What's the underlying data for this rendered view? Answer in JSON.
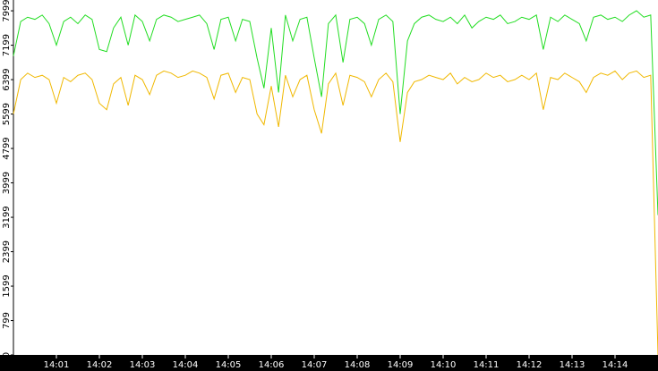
{
  "chart_data": {
    "type": "line",
    "x": [
      840,
      840.17,
      840.33,
      840.5,
      840.67,
      840.83,
      841,
      841.17,
      841.33,
      841.5,
      841.67,
      841.83,
      842,
      842.17,
      842.33,
      842.5,
      842.67,
      842.83,
      843,
      843.17,
      843.33,
      843.5,
      843.67,
      843.83,
      844,
      844.17,
      844.33,
      844.5,
      844.67,
      844.83,
      845,
      845.17,
      845.33,
      845.5,
      845.67,
      845.83,
      846,
      846.17,
      846.33,
      846.5,
      846.67,
      846.83,
      847,
      847.17,
      847.33,
      847.5,
      847.67,
      847.83,
      848,
      848.17,
      848.33,
      848.5,
      848.67,
      848.83,
      849,
      849.17,
      849.33,
      849.5,
      849.67,
      849.83,
      850,
      850.17,
      850.33,
      850.5,
      850.67,
      850.83,
      851,
      851.17,
      851.33,
      851.5,
      851.67,
      851.83,
      852,
      852.17,
      852.33,
      852.5,
      852.67,
      852.83,
      853,
      853.17,
      853.33,
      853.5,
      853.67,
      853.83,
      854,
      854.17,
      854.33,
      854.5,
      854.67,
      854.83,
      855
    ],
    "series": [
      {
        "color": "#22dd22",
        "values": [
          6950,
          7750,
          7850,
          7800,
          7900,
          7700,
          7200,
          7750,
          7850,
          7700,
          7900,
          7800,
          7100,
          7050,
          7600,
          7850,
          7200,
          7900,
          7750,
          7300,
          7800,
          7900,
          7850,
          7750,
          7800,
          7850,
          7900,
          7700,
          7100,
          7800,
          7850,
          7300,
          7800,
          7750,
          6900,
          6200,
          7600,
          6100,
          7900,
          7300,
          7800,
          7850,
          6900,
          6000,
          7700,
          7900,
          6800,
          7800,
          7850,
          7700,
          7200,
          7800,
          7900,
          7750,
          5600,
          7300,
          7700,
          7850,
          7900,
          7800,
          7750,
          7850,
          7700,
          7900,
          7600,
          7750,
          7850,
          7800,
          7900,
          7700,
          7750,
          7850,
          7800,
          7900,
          7100,
          7850,
          7750,
          7900,
          7800,
          7700,
          7300,
          7850,
          7900,
          7800,
          7850,
          7750,
          7900,
          8000,
          7850,
          7900,
          3250
        ]
      },
      {
        "color": "#f0b800",
        "values": [
          5600,
          6400,
          6550,
          6450,
          6500,
          6400,
          5850,
          6450,
          6350,
          6500,
          6550,
          6400,
          5850,
          5700,
          6300,
          6450,
          5800,
          6500,
          6400,
          6050,
          6500,
          6600,
          6550,
          6450,
          6500,
          6600,
          6550,
          6450,
          5950,
          6500,
          6550,
          6100,
          6450,
          6400,
          5600,
          5350,
          6250,
          5300,
          6500,
          6000,
          6400,
          6500,
          5700,
          5150,
          6300,
          6550,
          5800,
          6500,
          6450,
          6350,
          6000,
          6400,
          6550,
          6350,
          4950,
          6100,
          6350,
          6400,
          6500,
          6450,
          6400,
          6550,
          6300,
          6450,
          6350,
          6400,
          6550,
          6450,
          6500,
          6350,
          6400,
          6500,
          6400,
          6550,
          5700,
          6450,
          6400,
          6550,
          6450,
          6350,
          6100,
          6450,
          6550,
          6500,
          6600,
          6400,
          6550,
          6600,
          6450,
          6500,
          0
        ]
      }
    ],
    "xlim": [
      840,
      855
    ],
    "ylim": [
      0,
      8250
    ],
    "yticks": [
      0,
      799,
      1599,
      2399,
      3199,
      3999,
      4799,
      5599,
      6399,
      7199,
      7999
    ],
    "xticks": [
      {
        "value": 841,
        "label": "14:01"
      },
      {
        "value": 842,
        "label": "14:02"
      },
      {
        "value": 843,
        "label": "14:03"
      },
      {
        "value": 844,
        "label": "14:04"
      },
      {
        "value": 845,
        "label": "14:05"
      },
      {
        "value": 846,
        "label": "14:06"
      },
      {
        "value": 847,
        "label": "14:07"
      },
      {
        "value": 848,
        "label": "14:08"
      },
      {
        "value": 849,
        "label": "14:09"
      },
      {
        "value": 850,
        "label": "14:10"
      },
      {
        "value": 851,
        "label": "14:11"
      },
      {
        "value": 852,
        "label": "14:12"
      },
      {
        "value": 853,
        "label": "14:13"
      },
      {
        "value": 854,
        "label": "14:14"
      }
    ]
  }
}
